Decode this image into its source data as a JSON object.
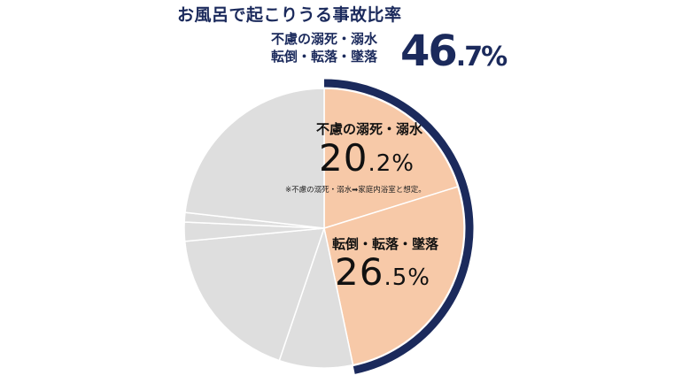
{
  "title": "お風呂で起こりうる事故比率",
  "total": {
    "label_line1": "不慮の溺死・溺水",
    "label_line2": "転倒・転落・墜落",
    "value_int": "46",
    "value_dec": ".7%"
  },
  "segments": {
    "drowning": {
      "label": "不慮の溺死・溺水",
      "value_int": "20",
      "value_dec": ".2%",
      "note": "※不慮の溺死・溺水➡家庭内浴室と想定。"
    },
    "falls": {
      "label": "転倒・転落・墜落",
      "value_int": "26",
      "value_dec": ".5%"
    }
  },
  "colors": {
    "highlight": "#f7c9a8",
    "other": "#dedede",
    "arc": "#1b2a5c",
    "title": "#1b2a5c"
  },
  "chart_data": {
    "type": "pie",
    "title": "お風呂で起こりうる事故比率",
    "slices": [
      {
        "name": "不慮の溺死・溺水",
        "value": 20.2,
        "highlighted": true
      },
      {
        "name": "転倒・転落・墜落",
        "value": 26.5,
        "highlighted": true
      },
      {
        "name": "",
        "value": 8.5,
        "highlighted": false
      },
      {
        "name": "",
        "value": 18.3,
        "highlighted": false
      },
      {
        "name": "",
        "value": 2.2,
        "highlighted": false
      },
      {
        "name": "",
        "value": 1.1,
        "highlighted": false
      },
      {
        "name": "",
        "value": 23.2,
        "highlighted": false
      }
    ],
    "highlight_total": 46.7,
    "start": "top",
    "direction": "clockwise"
  }
}
